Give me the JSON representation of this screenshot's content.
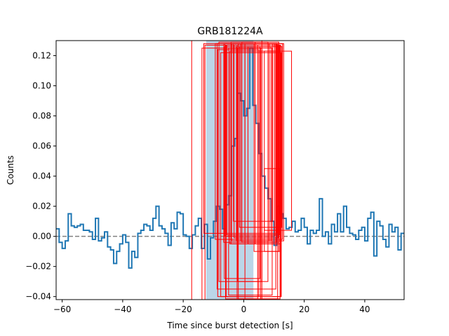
{
  "chart_data": {
    "type": "line",
    "title": "GRB181224A",
    "xlabel": "Time since burst detection [s]",
    "ylabel": "Counts",
    "xlim": [
      -62,
      53
    ],
    "ylim": [
      -0.042,
      0.13
    ],
    "x_ticks": [
      -60,
      -40,
      -20,
      0,
      20,
      40
    ],
    "y_ticks": [
      -0.04,
      -0.02,
      0.0,
      0.02,
      0.04,
      0.06,
      0.08,
      0.1,
      0.12
    ],
    "x_tick_labels": [
      "−60",
      "−40",
      "−20",
      "0",
      "20",
      "40"
    ],
    "y_tick_labels": [
      "−0.04",
      "−0.02",
      "0.00",
      "0.02",
      "0.04",
      "0.06",
      "0.08",
      "0.10",
      "0.12"
    ],
    "grid": false,
    "baseline": 0.0,
    "shaded_interval": {
      "x": [
        -12.4,
        3.2
      ],
      "y": [
        -0.042,
        0.13
      ]
    },
    "colors": {
      "series": "#1f77b4",
      "shade": "#1f77b4",
      "boxes": "#ff0000",
      "baseline": "#808080"
    },
    "series": [
      {
        "step_edges_x": [
          -62,
          -61,
          -60,
          -59,
          -58,
          -57,
          -56,
          -55,
          -54,
          -53,
          -52,
          -51,
          -50,
          -49,
          -48,
          -47,
          -46,
          -45,
          -44,
          -43,
          -42,
          -41,
          -40,
          -39,
          -38,
          -37,
          -36,
          -35,
          -34,
          -33,
          -32,
          -31,
          -30,
          -29,
          -28,
          -27,
          -26,
          -25,
          -24,
          -23,
          -22,
          -21,
          -20,
          -19,
          -18,
          -17,
          -16,
          -15,
          -14,
          -13,
          -12,
          -11,
          -10,
          -9,
          -8,
          -7,
          -6,
          -5,
          -4,
          -3,
          -2,
          -1,
          0,
          1,
          2,
          3,
          4,
          5,
          6,
          7,
          8,
          9,
          10,
          11,
          12,
          13,
          14,
          15,
          16,
          17,
          18,
          19,
          20,
          21,
          22,
          23,
          24,
          25,
          26,
          27,
          28,
          29,
          30,
          31,
          32,
          33,
          34,
          35,
          36,
          37,
          38,
          39,
          40,
          41,
          42,
          43,
          44,
          45,
          46,
          47,
          48,
          49,
          50,
          51,
          52,
          53
        ],
        "values": [
          0.005,
          -0.004,
          -0.008,
          -0.003,
          0.015,
          0.007,
          0.006,
          0.007,
          0.008,
          0.004,
          0.004,
          0.003,
          -0.002,
          0.012,
          -0.003,
          -0.001,
          0.003,
          -0.007,
          -0.009,
          -0.018,
          -0.01,
          -0.005,
          0.001,
          -0.004,
          -0.021,
          -0.01,
          -0.014,
          0.002,
          0.004,
          0.008,
          0.007,
          0.004,
          0.012,
          0.02,
          0.007,
          0.005,
          0.002,
          -0.006,
          0.009,
          0.005,
          0.016,
          0.015,
          0.001,
          0.0,
          -0.008,
          0.001,
          0.007,
          0.012,
          -0.008,
          0.008,
          -0.015,
          -0.001,
          0.01,
          0.02,
          0.018,
          0.005,
          0.021,
          0.027,
          0.06,
          0.065,
          0.095,
          0.09,
          0.08,
          0.085,
          0.125,
          0.087,
          0.075,
          0.055,
          0.04,
          0.032,
          0.025,
          0.01,
          -0.006,
          0.02,
          0.015,
          0.012,
          0.005,
          0.006,
          0.01,
          0.003,
          0.004,
          0.012,
          0.006,
          -0.005,
          0.004,
          0.002,
          0.004,
          0.025,
          0.0,
          0.003,
          -0.005,
          0.008,
          0.003,
          0.015,
          0.003,
          0.02,
          0.006,
          0.002,
          0.001,
          -0.002,
          0.004,
          0.006,
          -0.003,
          0.012,
          0.016,
          -0.013,
          0.01,
          0.007,
          -0.002,
          -0.007,
          0.008,
          0.003,
          0.006,
          -0.009,
          0.002
        ]
      }
    ],
    "boxes": [
      {
        "x": [
          -17.2,
          6.0
        ],
        "y": [
          -0.0425,
          0.13
        ]
      },
      {
        "x": [
          -13.8,
          5.6
        ],
        "y": [
          -0.0425,
          0.125
        ]
      },
      {
        "x": [
          -12.8,
          0.4
        ],
        "y": [
          -0.0425,
          0.127
        ]
      },
      {
        "x": [
          -13.2,
          11.0
        ],
        "y": [
          0.002,
          0.128
        ]
      },
      {
        "x": [
          -8.6,
          5.0
        ],
        "y": [
          -0.04,
          0.124
        ]
      },
      {
        "x": [
          -6.2,
          10.2
        ],
        "y": [
          0.0,
          0.128
        ]
      },
      {
        "x": [
          -5.6,
          11.8
        ],
        "y": [
          0.001,
          0.127
        ]
      },
      {
        "x": [
          -3.4,
          9.6
        ],
        "y": [
          0.01,
          0.128
        ]
      },
      {
        "x": [
          -1.4,
          12.6
        ],
        "y": [
          0.006,
          0.126
        ]
      },
      {
        "x": [
          -4.0,
          13.2
        ],
        "y": [
          -0.003,
          0.128
        ]
      },
      {
        "x": [
          -8.2,
          8.0
        ],
        "y": [
          -0.03,
          0.129
        ]
      },
      {
        "x": [
          -7.6,
          12.4
        ],
        "y": [
          -0.04,
          0.122
        ]
      },
      {
        "x": [
          -6.6,
          10.8
        ],
        "y": [
          -0.004,
          0.128
        ]
      },
      {
        "x": [
          -4.6,
          12.2
        ],
        "y": [
          -0.005,
          0.123
        ]
      },
      {
        "x": [
          -3.2,
          11.4
        ],
        "y": [
          -0.001,
          0.127
        ]
      },
      {
        "x": [
          -2.4,
          9.0
        ],
        "y": [
          -0.003,
          0.126
        ]
      },
      {
        "x": [
          -1.0,
          8.4
        ],
        "y": [
          -0.003,
          0.128
        ]
      },
      {
        "x": [
          -0.6,
          11.6
        ],
        "y": [
          -0.004,
          0.129
        ]
      },
      {
        "x": [
          0.4,
          12.8
        ],
        "y": [
          -0.002,
          0.128
        ]
      },
      {
        "x": [
          1.4,
          10.6
        ],
        "y": [
          -0.005,
          0.126
        ]
      },
      {
        "x": [
          -4.2,
          3.8
        ],
        "y": [
          -0.005,
          0.129
        ]
      },
      {
        "x": [
          3.4,
          11.6
        ],
        "y": [
          -0.01,
          0.128
        ]
      },
      {
        "x": [
          6.8,
          15.8
        ],
        "y": [
          0.004,
          0.123
        ]
      },
      {
        "x": [
          -6.4,
          5.4
        ],
        "y": [
          -0.028,
          0.126
        ]
      },
      {
        "x": [
          -2.0,
          6.0
        ],
        "y": [
          -0.03,
          0.125
        ]
      },
      {
        "x": [
          -5.0,
          9.4
        ],
        "y": [
          -0.039,
          0.125
        ]
      },
      {
        "x": [
          -5.8,
          12.2
        ],
        "y": [
          -0.04,
          0.127
        ]
      },
      {
        "x": [
          -8.8,
          10.6
        ],
        "y": [
          -0.035,
          0.128
        ]
      },
      {
        "x": [
          -9.4,
          11.2
        ],
        "y": [
          -0.002,
          0.128
        ]
      },
      {
        "x": [
          -1.8,
          11.2
        ],
        "y": [
          -0.0415,
          0.128
        ]
      },
      {
        "x": [
          -2.2,
          12.0
        ],
        "y": [
          -0.0415,
          0.127
        ]
      },
      {
        "x": [
          -6.0,
          4.6
        ],
        "y": [
          -0.0415,
          0.127
        ]
      },
      {
        "x": [
          6.8,
          12.0
        ],
        "y": [
          -0.01,
          0.045
        ]
      }
    ]
  }
}
